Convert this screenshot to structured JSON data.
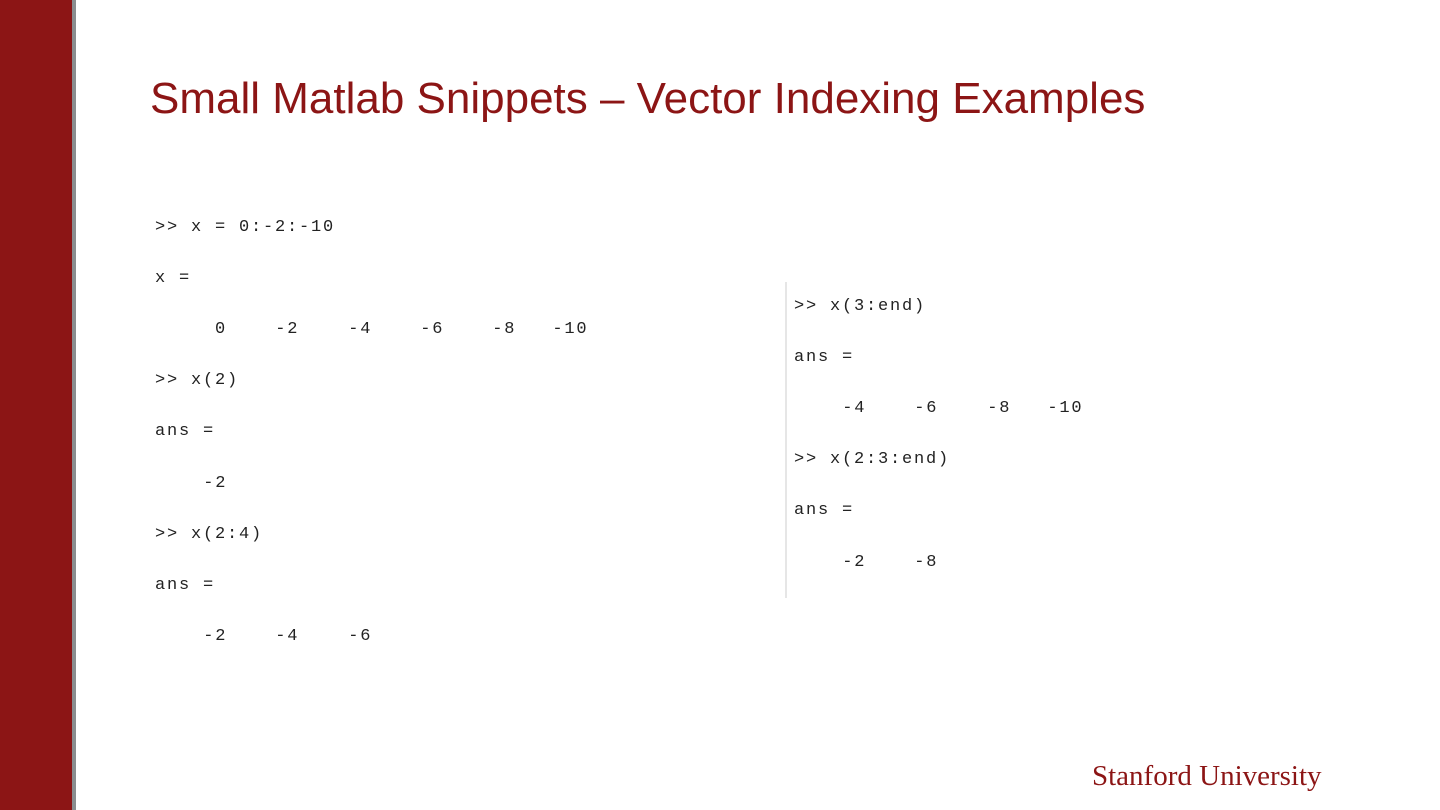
{
  "slide": {
    "title": "Small Matlab Snippets – Vector Indexing Examples",
    "brand_color": "#8C1515",
    "logo_text": "Stanford University"
  },
  "left_panel": {
    "lines": [
      {
        "kind": "command",
        "text": ">> x = 0:-2:-10"
      },
      {
        "kind": "label",
        "text": "x ="
      },
      {
        "kind": "values",
        "values": [
          "0",
          "-2",
          "-4",
          "-6",
          "-8",
          "-10"
        ]
      },
      {
        "kind": "command",
        "text": ">> x(2)"
      },
      {
        "kind": "label",
        "text": "ans ="
      },
      {
        "kind": "values",
        "values": [
          "-2"
        ]
      },
      {
        "kind": "command",
        "text": ">> x(2:4)"
      },
      {
        "kind": "label",
        "text": "ans ="
      },
      {
        "kind": "values",
        "values": [
          "-2",
          "-4",
          "-6"
        ]
      }
    ]
  },
  "right_panel": {
    "lines": [
      {
        "kind": "command",
        "text": ">> x(3:end)"
      },
      {
        "kind": "label",
        "text": "ans ="
      },
      {
        "kind": "values",
        "values": [
          "-4",
          "-6",
          "-8",
          "-10"
        ]
      },
      {
        "kind": "command",
        "text": ">> x(2:3:end)"
      },
      {
        "kind": "label",
        "text": "ans ="
      },
      {
        "kind": "values",
        "values": [
          "-2",
          "-8"
        ]
      }
    ]
  }
}
